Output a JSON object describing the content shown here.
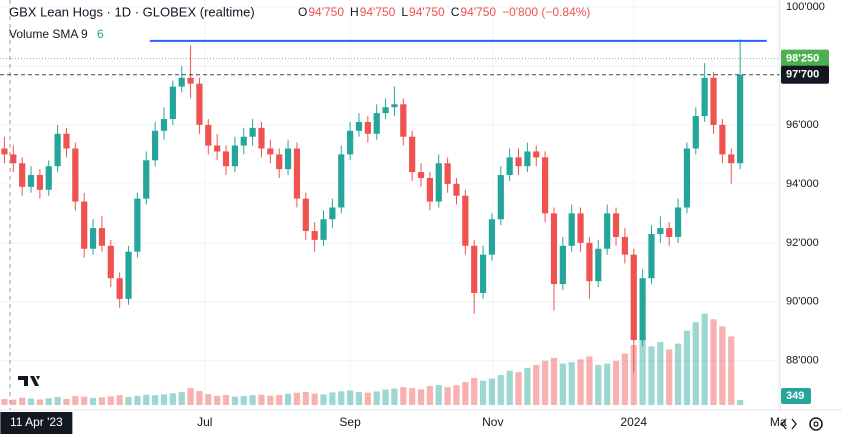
{
  "chart_data": {
    "type": "candlestick",
    "title": "GBX Lean Hogs · 1D · GLOBEX (realtime)",
    "ohlc_legend": [
      {
        "key": "O",
        "value": "94'750"
      },
      {
        "key": "H",
        "value": "94'750"
      },
      {
        "key": "L",
        "value": "94'750"
      },
      {
        "key": "C",
        "value": "94'750"
      }
    ],
    "change_label": "−0'800 (−0.84%)",
    "volume_legend": {
      "name": "Volume SMA 9",
      "value": "6"
    },
    "up_color": "#26a69a",
    "down_color": "#ef5350",
    "xlim": [
      -0.5,
      87.5
    ],
    "ylim": [
      86500,
      100237
    ],
    "yticks": [
      {
        "value": 88000,
        "label": "88'000"
      },
      {
        "value": 90000,
        "label": "90'000"
      },
      {
        "value": 92000,
        "label": "92'000"
      },
      {
        "value": 94000,
        "label": "94'000"
      },
      {
        "value": 96000,
        "label": "96'000"
      },
      {
        "value": 98000,
        "label": "98'000"
      },
      {
        "value": 100000,
        "label": "100'000"
      }
    ],
    "xticks": [
      {
        "value": 22.6,
        "label": "Jul"
      },
      {
        "value": 39,
        "label": "Sep"
      },
      {
        "value": 55.1,
        "label": "Nov"
      },
      {
        "value": 71,
        "label": "2024"
      },
      {
        "value": 87.3,
        "label": "Ma"
      }
    ],
    "crosshair": {
      "value": 3.6,
      "label": "11 Apr '23"
    },
    "grid": true,
    "open": [
      95200,
      95000,
      94700,
      93900,
      94300,
      93800,
      94600,
      95700,
      95200,
      93400,
      91800,
      92500,
      91900,
      90800,
      90100,
      91700,
      93500,
      94800,
      95800,
      96200,
      97300,
      97600,
      97400,
      96000,
      95300,
      95100,
      94600,
      95300,
      95600,
      95900,
      95200,
      95000,
      94500,
      95200,
      93500,
      92400,
      92100,
      92800,
      93200,
      95000,
      95800,
      96100,
      95700,
      96400,
      96600,
      96700,
      95600,
      94400,
      94200,
      93400,
      94700,
      94000,
      93600,
      91900,
      90300,
      91600,
      92800,
      94300,
      94900,
      94600,
      95100,
      94900,
      93000,
      90600,
      91900,
      93000,
      92000,
      90700,
      91800,
      93000,
      92200,
      91600,
      88700,
      90800,
      92300,
      92500,
      92200,
      93200,
      95200,
      96300,
      97600,
      96000,
      95000,
      94700
    ],
    "high": [
      95600,
      95300,
      94900,
      94600,
      94500,
      94800,
      96000,
      95900,
      95400,
      93700,
      92800,
      92900,
      92100,
      91000,
      91900,
      93700,
      95100,
      96100,
      96600,
      97500,
      98000,
      98700,
      97600,
      96200,
      95700,
      95300,
      95600,
      95900,
      96200,
      96100,
      95500,
      95200,
      95500,
      95400,
      93700,
      92700,
      93100,
      93500,
      95300,
      96100,
      96400,
      96300,
      96700,
      96900,
      97300,
      96900,
      95800,
      94700,
      94400,
      95000,
      94900,
      94200,
      93800,
      92100,
      91900,
      93000,
      94600,
      95200,
      95200,
      95400,
      95300,
      95100,
      93200,
      92200,
      93300,
      93200,
      92200,
      92100,
      93300,
      93200,
      92500,
      91800,
      91100,
      92600,
      92900,
      92700,
      93500,
      95400,
      96600,
      98100,
      97800,
      96200,
      95200,
      98900
    ],
    "low": [
      94700,
      94400,
      93600,
      93700,
      93500,
      93600,
      94400,
      94900,
      93100,
      91500,
      91600,
      91700,
      90500,
      89800,
      89900,
      91500,
      93300,
      94600,
      95500,
      96000,
      97100,
      96900,
      95700,
      95000,
      94800,
      94300,
      94400,
      95000,
      95300,
      94900,
      94700,
      94200,
      94300,
      93200,
      92100,
      91700,
      91900,
      92500,
      93000,
      94800,
      95600,
      95400,
      95500,
      96200,
      96300,
      95300,
      94100,
      93900,
      93100,
      93200,
      93700,
      93300,
      91600,
      89600,
      90100,
      91400,
      92600,
      94100,
      94300,
      94400,
      94600,
      92700,
      89700,
      90400,
      91700,
      91700,
      90100,
      90500,
      91600,
      91900,
      91300,
      87600,
      88500,
      90600,
      92000,
      91900,
      92000,
      93000,
      95000,
      96100,
      95700,
      94700,
      94000,
      94500
    ],
    "close": [
      95000,
      94700,
      93900,
      94300,
      93800,
      94600,
      95700,
      95200,
      93400,
      91800,
      92500,
      91900,
      90800,
      90100,
      91700,
      93500,
      94800,
      95800,
      96200,
      97300,
      97600,
      97400,
      96000,
      95300,
      95100,
      94600,
      95300,
      95600,
      95900,
      95200,
      95000,
      94500,
      95200,
      93500,
      92400,
      92100,
      92800,
      93200,
      95000,
      95800,
      96100,
      95700,
      96400,
      96600,
      96700,
      95600,
      94400,
      94200,
      93400,
      94700,
      94000,
      93600,
      91900,
      90300,
      91600,
      92800,
      94300,
      94900,
      94600,
      95100,
      94900,
      93000,
      90600,
      91900,
      93000,
      92000,
      90700,
      91800,
      93000,
      92200,
      91600,
      88700,
      90800,
      92300,
      92500,
      92200,
      93200,
      95200,
      96300,
      97600,
      96000,
      95000,
      94700,
      97700
    ],
    "volume": [
      420,
      380,
      510,
      450,
      390,
      470,
      560,
      430,
      620,
      580,
      500,
      540,
      610,
      690,
      560,
      640,
      720,
      680,
      750,
      820,
      900,
      1200,
      980,
      760,
      640,
      700,
      580,
      620,
      690,
      720,
      650,
      700,
      780,
      860,
      920,
      800,
      740,
      880,
      960,
      1020,
      900,
      860,
      950,
      1080,
      1150,
      1250,
      1180,
      1100,
      1320,
      1400,
      1250,
      1380,
      1600,
      1900,
      1700,
      1850,
      2100,
      2400,
      2300,
      2600,
      2800,
      3100,
      3300,
      2900,
      3000,
      3200,
      3400,
      2800,
      2900,
      3100,
      3600,
      4200,
      4600,
      4100,
      4400,
      3900,
      4300,
      5200,
      5800,
      6400,
      6000,
      5500,
      4800,
      349
    ],
    "volume_lim": [
      0,
      7000
    ],
    "level_line": {
      "value": 98850,
      "from": 16.4,
      "to": 86.0,
      "color": "#2962ff"
    },
    "price_lines": [
      {
        "value": 98250,
        "label": "98'250",
        "color": "#4caf50",
        "style": "dotted"
      },
      {
        "value": 97700,
        "label": "97'700",
        "color": "#131722",
        "style": "dashed"
      }
    ]
  }
}
